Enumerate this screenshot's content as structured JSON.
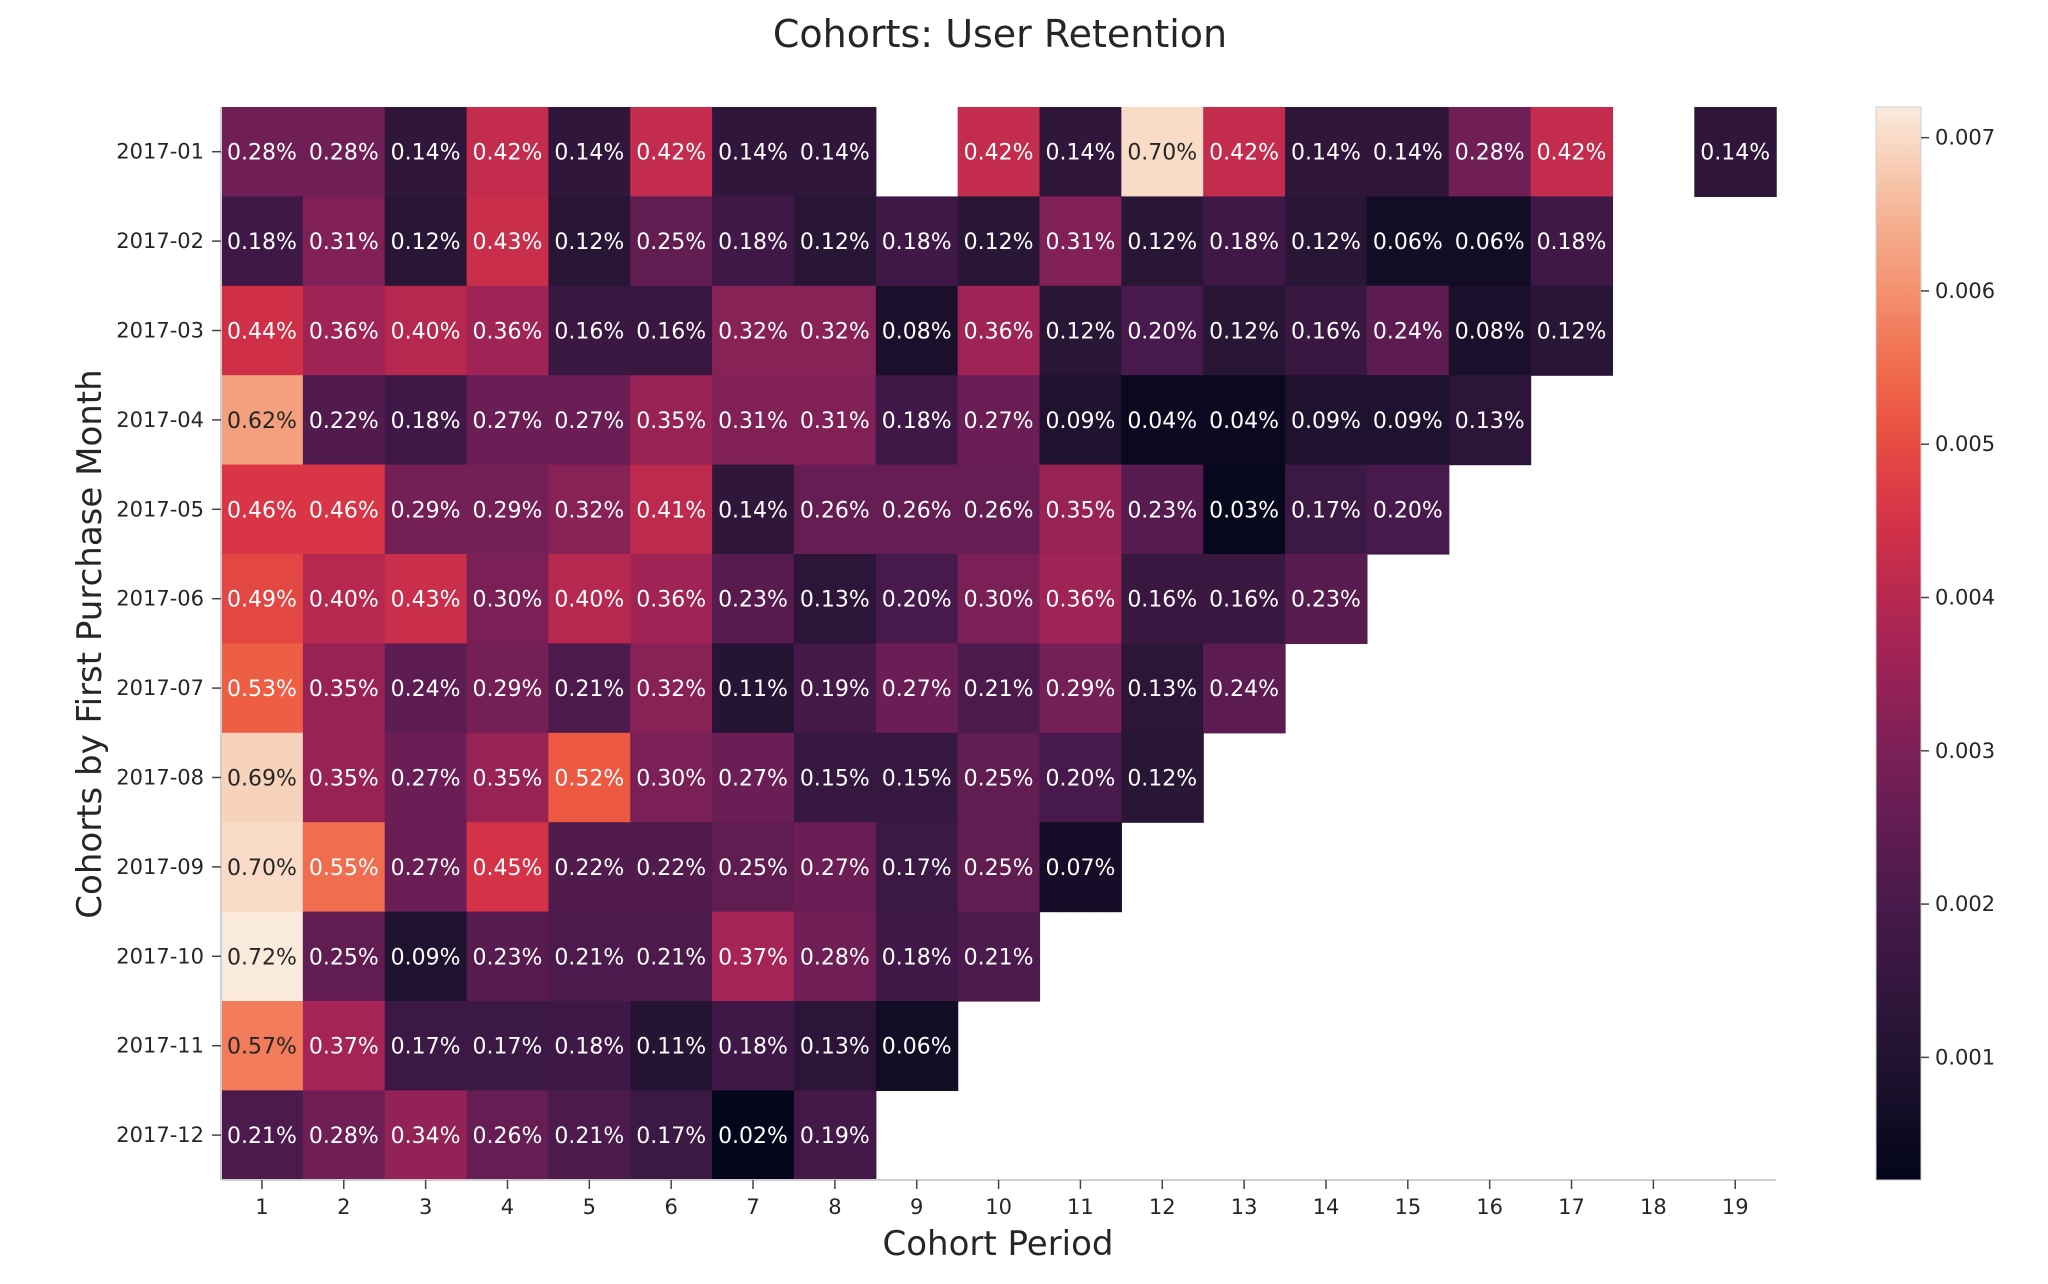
{
  "chart_data": {
    "type": "heatmap",
    "title": "Cohorts: User Retention",
    "xlabel": "Cohort Period",
    "ylabel": "Cohorts by First Purchase Month",
    "x": [
      "1",
      "2",
      "3",
      "4",
      "5",
      "6",
      "7",
      "8",
      "9",
      "10",
      "11",
      "12",
      "13",
      "14",
      "15",
      "16",
      "17",
      "18",
      "19"
    ],
    "y": [
      "2017-01",
      "2017-02",
      "2017-03",
      "2017-04",
      "2017-05",
      "2017-06",
      "2017-07",
      "2017-08",
      "2017-09",
      "2017-10",
      "2017-11",
      "2017-12"
    ],
    "values": [
      [
        0.0028,
        0.0028,
        0.0014,
        0.0042,
        0.0014,
        0.0042,
        0.0014,
        0.0014,
        null,
        0.0042,
        0.0014,
        0.007,
        0.0042,
        0.0014,
        0.0014,
        0.0028,
        0.0042,
        null,
        0.0014
      ],
      [
        0.0018,
        0.0031,
        0.0012,
        0.0043,
        0.0012,
        0.0025,
        0.0018,
        0.0012,
        0.0018,
        0.0012,
        0.0031,
        0.0012,
        0.0018,
        0.0012,
        0.0006,
        0.0006,
        0.0018
      ],
      [
        0.0044,
        0.0036,
        0.004,
        0.0036,
        0.0016,
        0.0016,
        0.0032,
        0.0032,
        0.0008,
        0.0036,
        0.0012,
        0.002,
        0.0012,
        0.0016,
        0.0024,
        0.0008,
        0.0012
      ],
      [
        0.0062,
        0.0022,
        0.0018,
        0.0027,
        0.0027,
        0.0035,
        0.0031,
        0.0031,
        0.0018,
        0.0027,
        0.0009,
        0.0004,
        0.0004,
        0.0009,
        0.0009,
        0.0013
      ],
      [
        0.0046,
        0.0046,
        0.0029,
        0.0029,
        0.0032,
        0.0041,
        0.0014,
        0.0026,
        0.0026,
        0.0026,
        0.0035,
        0.0023,
        0.0003,
        0.0017,
        0.002
      ],
      [
        0.0049,
        0.004,
        0.0043,
        0.003,
        0.004,
        0.0036,
        0.0023,
        0.0013,
        0.002,
        0.003,
        0.0036,
        0.0016,
        0.0016,
        0.0023
      ],
      [
        0.0053,
        0.0035,
        0.0024,
        0.0029,
        0.0021,
        0.0032,
        0.0011,
        0.0019,
        0.0027,
        0.0021,
        0.0029,
        0.0013,
        0.0024
      ],
      [
        0.0069,
        0.0035,
        0.0027,
        0.0035,
        0.0052,
        0.003,
        0.0027,
        0.0015,
        0.0015,
        0.0025,
        0.002,
        0.0012
      ],
      [
        0.007,
        0.0055,
        0.0027,
        0.0045,
        0.0022,
        0.0022,
        0.0025,
        0.0027,
        0.0017,
        0.0025,
        0.0007
      ],
      [
        0.0072,
        0.0025,
        0.0009,
        0.0023,
        0.0021,
        0.0021,
        0.0037,
        0.0028,
        0.0018,
        0.0021
      ],
      [
        0.0057,
        0.0037,
        0.0017,
        0.0017,
        0.0018,
        0.0011,
        0.0018,
        0.0013,
        0.0006
      ],
      [
        0.0021,
        0.0028,
        0.0034,
        0.0026,
        0.0021,
        0.0017,
        0.0002,
        0.0019
      ]
    ],
    "cell_labels": [
      [
        "0.28%",
        "0.28%",
        "0.14%",
        "0.42%",
        "0.14%",
        "0.42%",
        "0.14%",
        "0.14%",
        "",
        "0.42%",
        "0.14%",
        "0.70%",
        "0.42%",
        "0.14%",
        "0.14%",
        "0.28%",
        "0.42%",
        "",
        "0.14%"
      ],
      [
        "0.18%",
        "0.31%",
        "0.12%",
        "0.43%",
        "0.12%",
        "0.25%",
        "0.18%",
        "0.12%",
        "0.18%",
        "0.12%",
        "0.31%",
        "0.12%",
        "0.18%",
        "0.12%",
        "0.06%",
        "0.06%",
        "0.18%"
      ],
      [
        "0.44%",
        "0.36%",
        "0.40%",
        "0.36%",
        "0.16%",
        "0.16%",
        "0.32%",
        "0.32%",
        "0.08%",
        "0.36%",
        "0.12%",
        "0.20%",
        "0.12%",
        "0.16%",
        "0.24%",
        "0.08%",
        "0.12%"
      ],
      [
        "0.62%",
        "0.22%",
        "0.18%",
        "0.27%",
        "0.27%",
        "0.35%",
        "0.31%",
        "0.31%",
        "0.18%",
        "0.27%",
        "0.09%",
        "0.04%",
        "0.04%",
        "0.09%",
        "0.09%",
        "0.13%"
      ],
      [
        "0.46%",
        "0.46%",
        "0.29%",
        "0.29%",
        "0.32%",
        "0.41%",
        "0.14%",
        "0.26%",
        "0.26%",
        "0.26%",
        "0.35%",
        "0.23%",
        "0.03%",
        "0.17%",
        "0.20%"
      ],
      [
        "0.49%",
        "0.40%",
        "0.43%",
        "0.30%",
        "0.40%",
        "0.36%",
        "0.23%",
        "0.13%",
        "0.20%",
        "0.30%",
        "0.36%",
        "0.16%",
        "0.16%",
        "0.23%"
      ],
      [
        "0.53%",
        "0.35%",
        "0.24%",
        "0.29%",
        "0.21%",
        "0.32%",
        "0.11%",
        "0.19%",
        "0.27%",
        "0.21%",
        "0.29%",
        "0.13%",
        "0.24%"
      ],
      [
        "0.69%",
        "0.35%",
        "0.27%",
        "0.35%",
        "0.52%",
        "0.30%",
        "0.27%",
        "0.15%",
        "0.15%",
        "0.25%",
        "0.20%",
        "0.12%"
      ],
      [
        "0.70%",
        "0.55%",
        "0.27%",
        "0.45%",
        "0.22%",
        "0.22%",
        "0.25%",
        "0.27%",
        "0.17%",
        "0.25%",
        "0.07%"
      ],
      [
        "0.72%",
        "0.25%",
        "0.09%",
        "0.23%",
        "0.21%",
        "0.21%",
        "0.37%",
        "0.28%",
        "0.18%",
        "0.21%"
      ],
      [
        "0.57%",
        "0.37%",
        "0.17%",
        "0.17%",
        "0.18%",
        "0.11%",
        "0.18%",
        "0.13%",
        "0.06%"
      ],
      [
        "0.21%",
        "0.28%",
        "0.34%",
        "0.26%",
        "0.21%",
        "0.17%",
        "0.02%",
        "0.19%"
      ]
    ],
    "colormap": "rocket",
    "colorbar": {
      "vmin": 0.0002,
      "vmax": 0.0072,
      "ticks": [
        0.001,
        0.002,
        0.003,
        0.004,
        0.005,
        0.006,
        0.007
      ],
      "tick_labels": [
        "0.001",
        "0.002",
        "0.003",
        "0.004",
        "0.005",
        "0.006",
        "0.007"
      ]
    },
    "grid": false
  }
}
